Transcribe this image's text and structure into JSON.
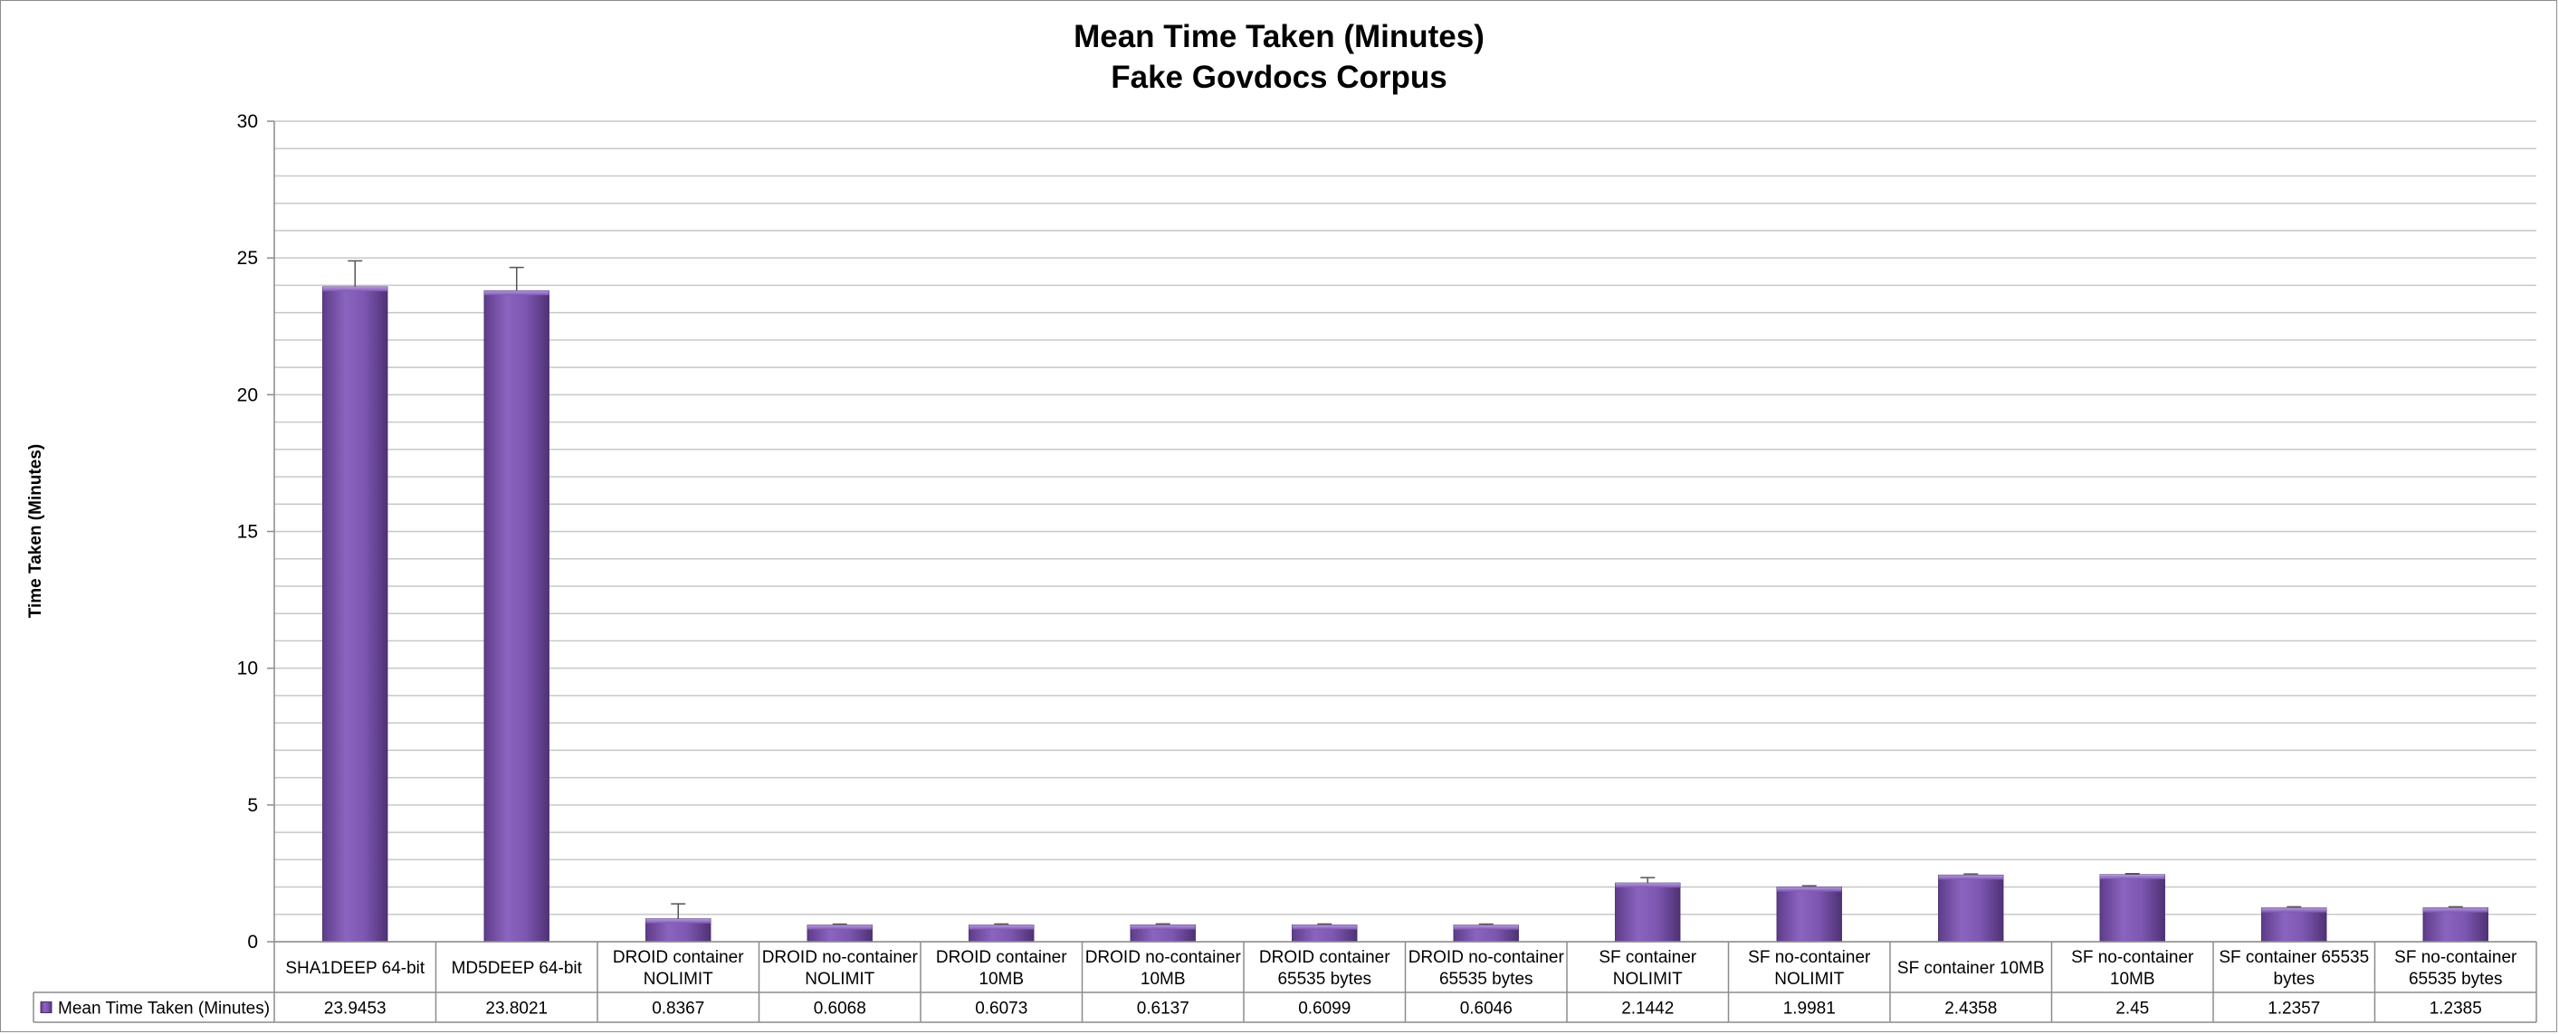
{
  "chart_data": {
    "type": "bar",
    "title": "Mean Time Taken (Minutes)",
    "subtitle": "Fake Govdocs Corpus",
    "ylabel": "Time Taken (Minutes)",
    "ylim": [
      0,
      30
    ],
    "y_ticks": [
      0,
      5,
      10,
      15,
      20,
      25,
      30
    ],
    "grid": true,
    "legend_position": "data-table-left",
    "bar_color": "#7a55a8",
    "categories": [
      [
        "SHA1DEEP 64-bit"
      ],
      [
        "MD5DEEP 64-bit"
      ],
      [
        "DROID container",
        "NOLIMIT"
      ],
      [
        "DROID no-container",
        "NOLIMIT"
      ],
      [
        "DROID container",
        "10MB"
      ],
      [
        "DROID no-container",
        "10MB"
      ],
      [
        "DROID container",
        "65535 bytes"
      ],
      [
        "DROID no-container",
        "65535 bytes"
      ],
      [
        "SF container",
        "NOLIMIT"
      ],
      [
        "SF no-container",
        "NOLIMIT"
      ],
      [
        "SF container 10MB"
      ],
      [
        "SF no-container",
        "10MB"
      ],
      [
        "SF container 65535",
        "bytes"
      ],
      [
        "SF no-container",
        "65535 bytes"
      ]
    ],
    "series": [
      {
        "name": "Mean Time Taken (Minutes)",
        "values": [
          23.9453,
          23.8021,
          0.8367,
          0.6068,
          0.6073,
          0.6137,
          0.6099,
          0.6046,
          2.1442,
          1.9981,
          2.4358,
          2.45,
          1.2357,
          1.2385
        ],
        "value_labels": [
          "23.9453",
          "23.8021",
          "0.8367",
          "0.6068",
          "0.6073",
          "0.6137",
          "0.6099",
          "0.6046",
          "2.1442",
          "1.9981",
          "2.4358",
          "2.45",
          "1.2357",
          "1.2385"
        ],
        "error_plus": [
          0.95,
          0.85,
          0.55,
          0.04,
          0.04,
          0.04,
          0.04,
          0.04,
          0.2,
          0.05,
          0.04,
          0.04,
          0.04,
          0.04
        ]
      }
    ]
  }
}
